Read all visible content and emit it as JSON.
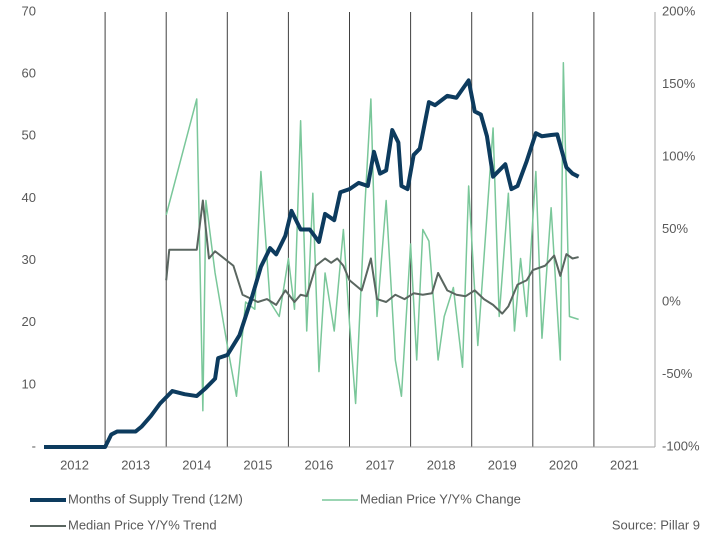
{
  "chart_data": {
    "type": "line",
    "source": "Source: Pillar 9",
    "xlim": [
      2012,
      2022
    ],
    "xticks": [
      {
        "value": 2012.5,
        "label": "2012"
      },
      {
        "value": 2013.5,
        "label": "2013"
      },
      {
        "value": 2014.5,
        "label": "2014"
      },
      {
        "value": 2015.5,
        "label": "2015"
      },
      {
        "value": 2016.5,
        "label": "2016"
      },
      {
        "value": 2017.5,
        "label": "2017"
      },
      {
        "value": 2018.5,
        "label": "2018"
      },
      {
        "value": 2019.5,
        "label": "2019"
      },
      {
        "value": 2020.5,
        "label": "2020"
      },
      {
        "value": 2021.5,
        "label": "2021"
      }
    ],
    "x_gridlines": [
      2013,
      2014,
      2015,
      2016,
      2017,
      2018,
      2019,
      2020,
      2021
    ],
    "ylim": [
      0,
      70
    ],
    "yticks": [
      {
        "value": 0,
        "label": "-"
      },
      10,
      20,
      30,
      40,
      50,
      60,
      70
    ],
    "y2lim": [
      -100,
      200
    ],
    "y2ticks": [
      {
        "value": -100,
        "label": "-100%"
      },
      {
        "value": -50,
        "label": "-50%"
      },
      {
        "value": 0,
        "label": "0%"
      },
      {
        "value": 50,
        "label": "50%"
      },
      {
        "value": 100,
        "label": "100%"
      },
      {
        "value": 150,
        "label": "150%"
      },
      {
        "value": 200,
        "label": "200%"
      }
    ],
    "series": [
      {
        "name": "Months of Supply Trend (12M)",
        "color": "#0d3b5e",
        "width": 4,
        "x": [
          2012.0,
          2013.0,
          2013.1,
          2013.2,
          2013.5,
          2013.6,
          2013.75,
          2013.9,
          2014.1,
          2014.3,
          2014.5,
          2014.65,
          2014.8,
          2014.85,
          2015.0,
          2015.2,
          2015.4,
          2015.55,
          2015.7,
          2015.8,
          2015.95,
          2016.05,
          2016.2,
          2016.35,
          2016.5,
          2016.6,
          2016.75,
          2016.85,
          2017.0,
          2017.15,
          2017.3,
          2017.4,
          2017.5,
          2017.6,
          2017.7,
          2017.8,
          2017.85,
          2017.95,
          2018.05,
          2018.15,
          2018.3,
          2018.4,
          2018.6,
          2018.75,
          2018.95,
          2019.05,
          2019.15,
          2019.25,
          2019.35,
          2019.55,
          2019.65,
          2019.75,
          2019.9,
          2020.05,
          2020.15,
          2020.3,
          2020.4,
          2020.55,
          2020.65,
          2020.75
        ],
        "values": [
          0,
          0,
          2,
          2.5,
          2.5,
          3.3,
          5,
          7,
          9,
          8.5,
          8.2,
          9.5,
          11,
          14.3,
          14.8,
          18,
          24,
          29,
          32,
          31,
          34,
          38,
          35,
          35,
          33,
          37.5,
          36.5,
          41,
          41.5,
          42.5,
          42,
          47.5,
          44,
          44.5,
          51,
          49,
          42,
          41.5,
          47,
          48,
          55.5,
          55,
          56.5,
          56.2,
          59,
          54,
          53.5,
          50,
          43.5,
          45.5,
          41.5,
          42,
          46,
          50.5,
          50,
          50.2,
          50.3,
          45,
          44,
          43.5
        ]
      },
      {
        "name": "Median Price Y/Y% Change",
        "color": "#7ac79a",
        "width": 1.5,
        "axis": "y2",
        "x": [
          2014.0,
          2014.5,
          2014.6,
          2014.65,
          2014.8,
          2015.0,
          2015.15,
          2015.3,
          2015.45,
          2015.55,
          2015.7,
          2015.85,
          2016.0,
          2016.1,
          2016.2,
          2016.3,
          2016.4,
          2016.5,
          2016.6,
          2016.75,
          2016.9,
          2017.0,
          2017.1,
          2017.25,
          2017.35,
          2017.45,
          2017.6,
          2017.75,
          2017.85,
          2018.0,
          2018.1,
          2018.2,
          2018.3,
          2018.45,
          2018.55,
          2018.7,
          2018.85,
          2018.95,
          2019.1,
          2019.2,
          2019.35,
          2019.45,
          2019.6,
          2019.7,
          2019.8,
          2019.9,
          2020.05,
          2020.15,
          2020.3,
          2020.45,
          2020.5,
          2020.6,
          2020.75
        ],
        "values": [
          60,
          140,
          -75,
          70,
          20,
          -30,
          -65,
          0,
          -5,
          90,
          0,
          -10,
          30,
          -5,
          125,
          -20,
          75,
          -48,
          20,
          -20,
          50,
          -15,
          -70,
          65,
          140,
          -10,
          70,
          -40,
          -65,
          40,
          -40,
          50,
          42,
          -40,
          -10,
          10,
          -45,
          80,
          -30,
          30,
          120,
          -10,
          75,
          -20,
          30,
          -10,
          90,
          -25,
          65,
          -40,
          165,
          -10,
          -12
        ]
      },
      {
        "name": "Median Price Y/Y% Trend",
        "color": "#5a6660",
        "width": 2,
        "axis": "y2",
        "x": [
          2014.0,
          2014.05,
          2014.5,
          2014.6,
          2014.7,
          2014.8,
          2014.95,
          2015.1,
          2015.25,
          2015.5,
          2015.65,
          2015.8,
          2015.95,
          2016.1,
          2016.2,
          2016.3,
          2016.45,
          2016.6,
          2016.7,
          2016.8,
          2016.9,
          2017.0,
          2017.2,
          2017.35,
          2017.45,
          2017.6,
          2017.75,
          2017.9,
          2018.05,
          2018.2,
          2018.35,
          2018.45,
          2018.6,
          2018.75,
          2018.9,
          2019.05,
          2019.2,
          2019.35,
          2019.5,
          2019.6,
          2019.75,
          2019.9,
          2020.0,
          2020.2,
          2020.35,
          2020.45,
          2020.55,
          2020.65,
          2020.75
        ],
        "values": [
          15,
          36,
          36,
          70,
          30,
          35,
          30,
          25,
          5,
          0,
          2,
          -2,
          8,
          0,
          5,
          4,
          25,
          30,
          27,
          30,
          25,
          15,
          8,
          30,
          2,
          0,
          5,
          2,
          6,
          5,
          6,
          20,
          8,
          5,
          4,
          8,
          2,
          -2,
          -8,
          -3,
          12,
          15,
          22,
          25,
          32,
          18,
          33,
          30,
          31
        ]
      }
    ]
  }
}
